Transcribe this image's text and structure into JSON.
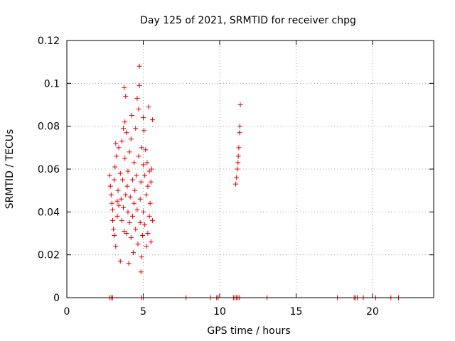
{
  "chart_data": {
    "type": "scatter",
    "title": "Day 125 of 2021, SRMTID for receiver chpg",
    "xlabel": "GPS time / hours",
    "ylabel": "SRMTID / TECUs",
    "xlim": [
      0,
      24
    ],
    "ylim": [
      0,
      0.12
    ],
    "xticks": [
      0,
      5,
      10,
      15,
      20
    ],
    "xtick_labels": [
      "0",
      "5",
      "10",
      "15",
      "20"
    ],
    "yticks": [
      0,
      0.02,
      0.04,
      0.06,
      0.08,
      0.1,
      0.12
    ],
    "ytick_labels": [
      "0",
      "0.02",
      "0.04",
      "0.06",
      "0.08",
      "0.1",
      "0.12"
    ],
    "grid": true,
    "marker": "+",
    "color": "#e00000",
    "series": [
      {
        "name": "SRMTID",
        "points": [
          [
            2.8,
            0.057
          ],
          [
            2.85,
            0.052
          ],
          [
            2.9,
            0.048
          ],
          [
            2.95,
            0.044
          ],
          [
            3.0,
            0.041
          ],
          [
            3.0,
            0.036
          ],
          [
            3.05,
            0.032
          ],
          [
            3.1,
            0.029
          ],
          [
            3.1,
            0.055
          ],
          [
            3.15,
            0.061
          ],
          [
            3.2,
            0.024
          ],
          [
            3.2,
            0.072
          ],
          [
            3.25,
            0.066
          ],
          [
            3.3,
            0.045
          ],
          [
            3.3,
            0.038
          ],
          [
            3.35,
            0.05
          ],
          [
            3.4,
            0.043
          ],
          [
            3.4,
            0.07
          ],
          [
            3.5,
            0.017
          ],
          [
            3.5,
            0.058
          ],
          [
            3.55,
            0.046
          ],
          [
            3.6,
            0.036
          ],
          [
            3.6,
            0.073
          ],
          [
            3.65,
            0.055
          ],
          [
            3.7,
            0.042
          ],
          [
            3.7,
            0.079
          ],
          [
            3.75,
            0.031
          ],
          [
            3.75,
            0.098
          ],
          [
            3.8,
            0.082
          ],
          [
            3.8,
            0.065
          ],
          [
            3.85,
            0.048
          ],
          [
            3.85,
            0.094
          ],
          [
            3.9,
            0.03
          ],
          [
            3.9,
            0.077
          ],
          [
            3.95,
            0.052
          ],
          [
            4.0,
            0.059
          ],
          [
            4.0,
            0.04
          ],
          [
            4.05,
            0.016
          ],
          [
            4.1,
            0.068
          ],
          [
            4.1,
            0.035
          ],
          [
            4.15,
            0.047
          ],
          [
            4.2,
            0.074
          ],
          [
            4.2,
            0.028
          ],
          [
            4.25,
            0.085
          ],
          [
            4.3,
            0.055
          ],
          [
            4.3,
            0.038
          ],
          [
            4.35,
            0.021
          ],
          [
            4.4,
            0.063
          ],
          [
            4.4,
            0.044
          ],
          [
            4.45,
            0.05
          ],
          [
            4.5,
            0.079
          ],
          [
            4.5,
            0.032
          ],
          [
            4.55,
            0.057
          ],
          [
            4.6,
            0.093
          ],
          [
            4.6,
            0.041
          ],
          [
            4.65,
            0.025
          ],
          [
            4.7,
            0.088
          ],
          [
            4.7,
            0.066
          ],
          [
            4.75,
            0.108
          ],
          [
            4.75,
            0.099
          ],
          [
            4.8,
            0.046
          ],
          [
            4.8,
            0.035
          ],
          [
            4.85,
            0.012
          ],
          [
            4.85,
            0.054
          ],
          [
            4.9,
            0.07
          ],
          [
            4.9,
            0.019
          ],
          [
            4.95,
            0.029
          ],
          [
            5.0,
            0.084
          ],
          [
            5.0,
            0.062
          ],
          [
            5.0,
            0.04
          ],
          [
            5.05,
            0.078
          ],
          [
            5.1,
            0.057
          ],
          [
            5.1,
            0.034
          ],
          [
            5.15,
            0.069
          ],
          [
            5.2,
            0.048
          ],
          [
            5.2,
            0.024
          ],
          [
            5.25,
            0.063
          ],
          [
            5.3,
            0.052
          ],
          [
            5.3,
            0.03
          ],
          [
            5.35,
            0.089
          ],
          [
            5.4,
            0.059
          ],
          [
            5.4,
            0.038
          ],
          [
            5.45,
            0.044
          ],
          [
            5.5,
            0.054
          ],
          [
            5.5,
            0.026
          ],
          [
            5.55,
            0.06
          ],
          [
            5.6,
            0.083
          ],
          [
            5.6,
            0.036
          ],
          [
            11.05,
            0.053
          ],
          [
            11.1,
            0.056
          ],
          [
            11.15,
            0.06
          ],
          [
            11.2,
            0.063
          ],
          [
            11.22,
            0.066
          ],
          [
            11.25,
            0.07
          ],
          [
            11.3,
            0.077
          ],
          [
            11.32,
            0.08
          ],
          [
            11.35,
            0.09
          ],
          [
            2.8,
            0.0
          ],
          [
            2.9,
            0.0
          ],
          [
            3.0,
            0.0
          ],
          [
            4.9,
            0.0
          ],
          [
            5.0,
            0.0
          ],
          [
            7.8,
            0.0
          ],
          [
            9.4,
            0.0
          ],
          [
            9.8,
            0.0
          ],
          [
            9.9,
            0.0
          ],
          [
            10.9,
            0.0
          ],
          [
            11.0,
            0.0
          ],
          [
            11.1,
            0.0
          ],
          [
            11.2,
            0.0
          ],
          [
            11.3,
            0.0
          ],
          [
            13.1,
            0.0
          ],
          [
            17.7,
            0.0
          ],
          [
            18.8,
            0.0
          ],
          [
            18.9,
            0.0
          ],
          [
            19.0,
            0.0
          ],
          [
            19.4,
            0.0
          ],
          [
            20.2,
            0.0
          ],
          [
            21.2,
            0.0
          ],
          [
            21.7,
            0.0
          ]
        ]
      }
    ]
  }
}
